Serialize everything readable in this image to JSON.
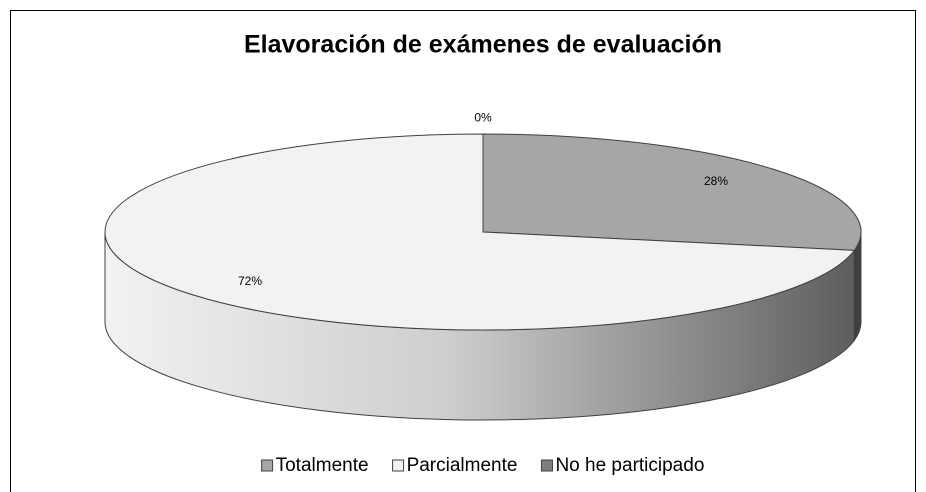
{
  "chart_data": {
    "type": "pie",
    "title": "Elavoración de exámenes de evaluación",
    "categories": [
      "Totalmente",
      "Parcialmente",
      "No he participado"
    ],
    "values": [
      28,
      72,
      0
    ],
    "value_labels": [
      "28%",
      "72%",
      "0%"
    ],
    "colors": [
      "#a6a6a6",
      "#f2f2f2",
      "#7f7f7f"
    ],
    "legend": "bottom"
  }
}
